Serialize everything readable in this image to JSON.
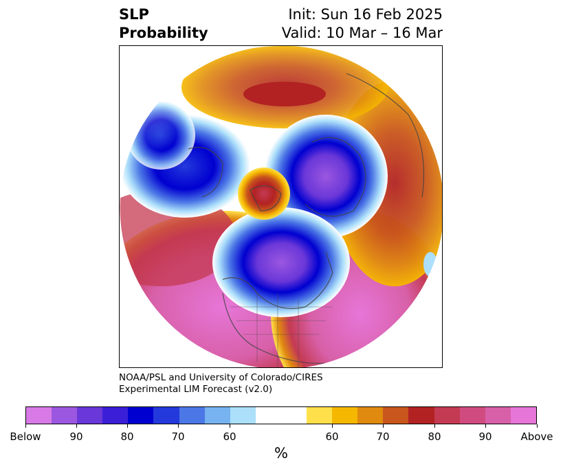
{
  "title": {
    "left_line1": "SLP",
    "left_line2": "Probability",
    "right_line1": "Init: Sun 16 Feb 2025",
    "right_line2": "Valid: 10 Mar – 16 Mar"
  },
  "credit": {
    "line1": "NOAA/PSL and University of Colorado/CIRES",
    "line2": "Experimental LIM Forecast (v2.0)"
  },
  "colorbar": {
    "colors": [
      "#d77ae6",
      "#9b57e0",
      "#6a37d8",
      "#3a1fd6",
      "#0000d0",
      "#2439dc",
      "#4c77e6",
      "#76b3f0",
      "#acdffa",
      "#ffffff",
      "#ffe04a",
      "#f5b700",
      "#e08a10",
      "#c9561c",
      "#b22222",
      "#c43a52",
      "#d04c80",
      "#d860a8",
      "#e676d8"
    ],
    "tick_labels": [
      "Below",
      "90",
      "80",
      "70",
      "60",
      "60",
      "70",
      "80",
      "90",
      "Above"
    ],
    "unit": "%"
  },
  "map": {
    "projection": "north-polar-stereographic",
    "content": "probability-of-below-or-above-normal-sea-level-pressure"
  }
}
